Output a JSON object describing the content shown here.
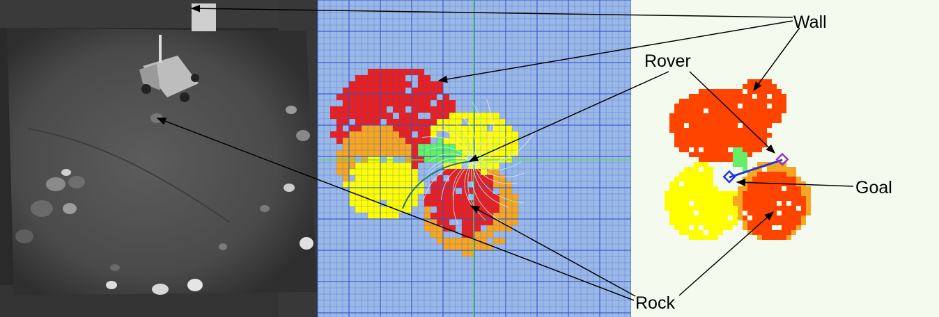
{
  "labels": {
    "wall": "Wall",
    "rover": "Rover",
    "goal": "Goal",
    "rock": "Rock"
  },
  "colors": {
    "obstacle_red": "#e82020",
    "obstacle_orange_red": "#ff4400",
    "risk_orange": "#f5a623",
    "risk_yellow": "#ffff00",
    "free_green": "#66ee66",
    "path_cyan": "#88ffff",
    "grid_background": "#9ab8e6",
    "grid_line": "#3355cc",
    "map_background": "#f4fbee",
    "route_blue": "#2233dd",
    "waypoint_purple": "#9933cc"
  },
  "panels": [
    "camera-photo",
    "planning-grid",
    "traversability-map"
  ]
}
